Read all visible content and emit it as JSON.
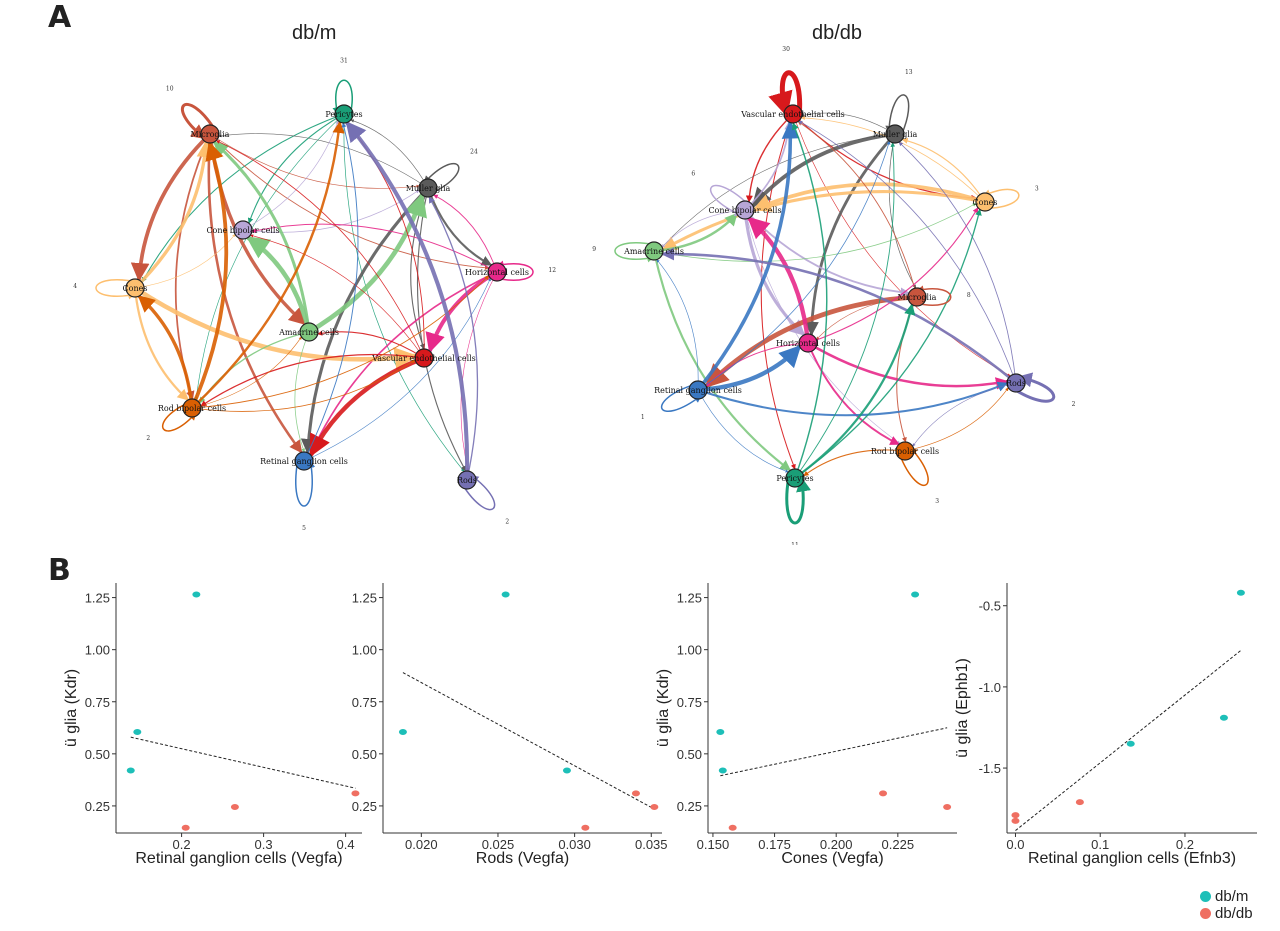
{
  "panels": {
    "a": "A",
    "b": "B"
  },
  "colors": {
    "dbm": "#1dbfb8",
    "dbdb": "#ef6f62"
  },
  "networks": [
    {
      "title": "db/m",
      "nodes": [
        {
          "id": "Pericytes",
          "label": "Pericytes",
          "color": "#1a9e77"
        },
        {
          "id": "Microglia",
          "label": "Microglia",
          "color": "#c8553d"
        },
        {
          "id": "Muller glia",
          "label": "Muller glia",
          "color": "#5b5b5b"
        },
        {
          "id": "Cone bipolar cells",
          "label": "Cone bipolar cells",
          "color": "#b7a6d6"
        },
        {
          "id": "Horizontal cells",
          "label": "Horizontal cells",
          "color": "#e7298a"
        },
        {
          "id": "Cones",
          "label": "Cones",
          "color": "#fdbf6f"
        },
        {
          "id": "Amacrine cells",
          "label": "Amacrine cells",
          "color": "#7fc97f"
        },
        {
          "id": "Vascular endothelial cells",
          "label": "Vascular endothelial cells",
          "color": "#d7191c"
        },
        {
          "id": "Rod bipolar cells",
          "label": "Rod bipolar cells",
          "color": "#d95f02"
        },
        {
          "id": "Retinal ganglion cells",
          "label": "Retinal ganglion cells",
          "color": "#3a78c2"
        },
        {
          "id": "Rods",
          "label": "Rods",
          "color": "#7570b3"
        }
      ],
      "self_loop_labels": [
        "31",
        "10",
        "24",
        "12",
        "4",
        "2",
        "5",
        "2"
      ]
    },
    {
      "title": "db/db",
      "nodes": [
        {
          "id": "Vascular endothelial cells",
          "label": "Vascular endothelial cells",
          "color": "#d7191c"
        },
        {
          "id": "Muller glia",
          "label": "Muller glia",
          "color": "#5b5b5b"
        },
        {
          "id": "Cones",
          "label": "Cones",
          "color": "#fdbf6f"
        },
        {
          "id": "Cone bipolar cells",
          "label": "Cone bipolar cells",
          "color": "#b7a6d6"
        },
        {
          "id": "Amacrine cells",
          "label": "Amacrine cells",
          "color": "#7fc97f"
        },
        {
          "id": "Microglia",
          "label": "Microglia",
          "color": "#c8553d"
        },
        {
          "id": "Horizontal cells",
          "label": "Horizontal cells",
          "color": "#e7298a"
        },
        {
          "id": "Retinal ganglion cells",
          "label": "Retinal ganglion cells",
          "color": "#3a78c2"
        },
        {
          "id": "Rods",
          "label": "Rods",
          "color": "#7570b3"
        },
        {
          "id": "Rod bipolar cells",
          "label": "Rod bipolar cells",
          "color": "#d95f02"
        },
        {
          "id": "Pericytes",
          "label": "Pericytes",
          "color": "#1a9e77"
        }
      ],
      "self_loop_labels": [
        "30",
        "13",
        "3",
        "6",
        "9",
        "8",
        "2",
        "1",
        "3",
        "11"
      ]
    }
  ],
  "chart_data": [
    {
      "type": "scatter",
      "xlabel": "Retinal ganglion cells (Vegfa)",
      "ylabel": "ü glia (Kdr)",
      "xlim": [
        0.12,
        0.42
      ],
      "ylim": [
        0.12,
        1.32
      ],
      "xticks": [
        {
          "v": 0.2,
          "l": "0.2"
        },
        {
          "v": 0.3,
          "l": "0.3"
        },
        {
          "v": 0.4,
          "l": "0.4"
        }
      ],
      "yticks": [
        {
          "v": 0.25,
          "l": "0.25"
        },
        {
          "v": 0.5,
          "l": "0.50"
        },
        {
          "v": 0.75,
          "l": "0.75"
        },
        {
          "v": 1.0,
          "l": "1.00"
        },
        {
          "v": 1.25,
          "l": "1.25"
        }
      ],
      "series": [
        {
          "name": "db/m",
          "points": [
            [
              0.138,
              0.42
            ],
            [
              0.146,
              0.605
            ],
            [
              0.218,
              1.265
            ]
          ]
        },
        {
          "name": "db/db",
          "points": [
            [
              0.205,
              0.145
            ],
            [
              0.265,
              0.245
            ],
            [
              0.412,
              0.31
            ]
          ]
        }
      ],
      "fit": [
        [
          0.138,
          0.58
        ],
        [
          0.412,
          0.335
        ]
      ]
    },
    {
      "type": "scatter",
      "xlabel": "Rods (Vegfa)",
      "ylabel": "ü glia (Kdr)",
      "xlim": [
        0.0175,
        0.0357
      ],
      "ylim": [
        0.12,
        1.32
      ],
      "xticks": [
        {
          "v": 0.02,
          "l": "0.020"
        },
        {
          "v": 0.025,
          "l": "0.025"
        },
        {
          "v": 0.03,
          "l": "0.030"
        },
        {
          "v": 0.035,
          "l": "0.035"
        }
      ],
      "yticks": [
        {
          "v": 0.25,
          "l": "0.25"
        },
        {
          "v": 0.5,
          "l": "0.50"
        },
        {
          "v": 0.75,
          "l": "0.75"
        },
        {
          "v": 1.0,
          "l": "1.00"
        },
        {
          "v": 1.25,
          "l": "1.25"
        }
      ],
      "series": [
        {
          "name": "db/m",
          "points": [
            [
              0.0188,
              0.605
            ],
            [
              0.0255,
              1.265
            ],
            [
              0.0295,
              0.42
            ]
          ]
        },
        {
          "name": "db/db",
          "points": [
            [
              0.0307,
              0.145
            ],
            [
              0.034,
              0.31
            ],
            [
              0.0352,
              0.245
            ]
          ]
        }
      ],
      "fit": [
        [
          0.0188,
          0.89
        ],
        [
          0.0352,
          0.235
        ]
      ]
    },
    {
      "type": "scatter",
      "xlabel": "Cones (Vegfa)",
      "ylabel": "ü glia (Kdr)",
      "xlim": [
        0.148,
        0.249
      ],
      "ylim": [
        0.12,
        1.32
      ],
      "xticks": [
        {
          "v": 0.15,
          "l": "0.150"
        },
        {
          "v": 0.175,
          "l": "0.175"
        },
        {
          "v": 0.2,
          "l": "0.200"
        },
        {
          "v": 0.225,
          "l": "0.225"
        }
      ],
      "yticks": [
        {
          "v": 0.25,
          "l": "0.25"
        },
        {
          "v": 0.5,
          "l": "0.50"
        },
        {
          "v": 0.75,
          "l": "0.75"
        },
        {
          "v": 1.0,
          "l": "1.00"
        },
        {
          "v": 1.25,
          "l": "1.25"
        }
      ],
      "series": [
        {
          "name": "db/m",
          "points": [
            [
              0.153,
              0.605
            ],
            [
              0.154,
              0.42
            ],
            [
              0.232,
              1.265
            ]
          ]
        },
        {
          "name": "db/db",
          "points": [
            [
              0.158,
              0.145
            ],
            [
              0.219,
              0.31
            ],
            [
              0.245,
              0.245
            ]
          ]
        }
      ],
      "fit": [
        [
          0.153,
          0.395
        ],
        [
          0.245,
          0.625
        ]
      ]
    },
    {
      "type": "scatter",
      "xlabel": "Retinal ganglion cells (Efnb3)",
      "ylabel": "ü glia  (Ephb1)",
      "xlim": [
        -0.01,
        0.285
      ],
      "ylim": [
        -1.9,
        -0.36
      ],
      "xticks": [
        {
          "v": 0.0,
          "l": "0.0"
        },
        {
          "v": 0.1,
          "l": "0.1"
        },
        {
          "v": 0.2,
          "l": "0.2"
        }
      ],
      "yticks": [
        {
          "v": -1.5,
          "l": "-1.5"
        },
        {
          "v": -1.0,
          "l": "-1.0"
        },
        {
          "v": -0.5,
          "l": "-0.5"
        }
      ],
      "series": [
        {
          "name": "db/m",
          "points": [
            [
              0.136,
              -1.35
            ],
            [
              0.246,
              -1.19
            ],
            [
              0.266,
              -0.42
            ]
          ]
        },
        {
          "name": "db/db",
          "points": [
            [
              0.0,
              -1.79
            ],
            [
              0.0,
              -1.825
            ],
            [
              0.076,
              -1.71
            ]
          ]
        }
      ],
      "fit": [
        [
          0.0,
          -1.885
        ],
        [
          0.266,
          -0.775
        ]
      ]
    }
  ],
  "legend": [
    {
      "label": "db/m"
    },
    {
      "label": "db/db"
    }
  ]
}
